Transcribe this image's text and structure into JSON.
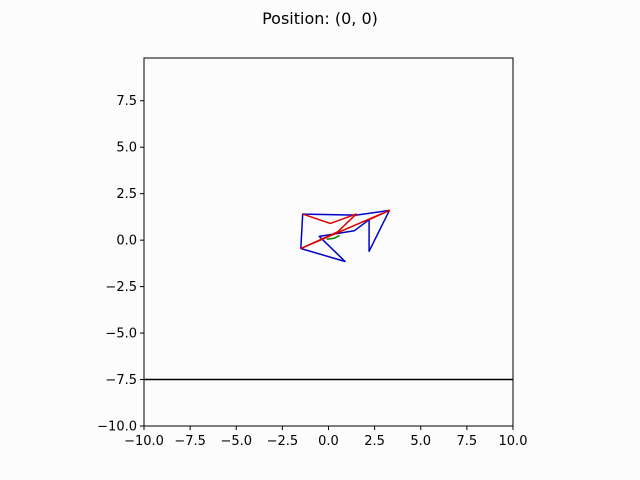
{
  "chart_data": {
    "type": "line",
    "title": "Position: (0, 0)",
    "xlabel": "",
    "ylabel": "",
    "xlim": [
      -10,
      10
    ],
    "ylim": [
      -10,
      9.8
    ],
    "x_ticks": [
      -10,
      -7.5,
      -5,
      -2.5,
      0,
      2.5,
      5,
      7.5,
      10
    ],
    "x_tick_labels": [
      "−10.0",
      "−7.5",
      "−5.0",
      "−2.5",
      "0.0",
      "2.5",
      "5.0",
      "7.5",
      "10.0"
    ],
    "y_ticks": [
      -10,
      -7.5,
      -5,
      -2.5,
      0,
      2.5,
      5,
      7.5
    ],
    "y_tick_labels": [
      "−10.0",
      "−7.5",
      "−5.0",
      "−2.5",
      "0.0",
      "2.5",
      "5.0",
      "7.5"
    ],
    "grid": false,
    "hline": {
      "y": -7.5,
      "color": "#000000"
    },
    "series": [
      {
        "color": "#0000cc",
        "x": [
          -1.5,
          -1.4,
          1.5,
          3.3,
          2.2,
          2.2,
          1.4,
          -0.5,
          0.9,
          -1.5
        ],
        "y": [
          -0.45,
          1.4,
          1.35,
          1.6,
          -0.6,
          1.1,
          0.5,
          0.2,
          -1.15,
          -0.45
        ]
      },
      {
        "color": "#dd0000",
        "x": [
          -1.4,
          0.1,
          1.5,
          0.5,
          -1.5,
          3.3,
          2.2
        ],
        "y": [
          1.4,
          0.9,
          1.4,
          0.45,
          -0.45,
          1.6,
          1.1
        ]
      },
      {
        "color": "#008000",
        "x": [
          -0.1,
          0.3,
          0.6
        ],
        "y": [
          0.05,
          0.1,
          0.25
        ]
      }
    ]
  }
}
